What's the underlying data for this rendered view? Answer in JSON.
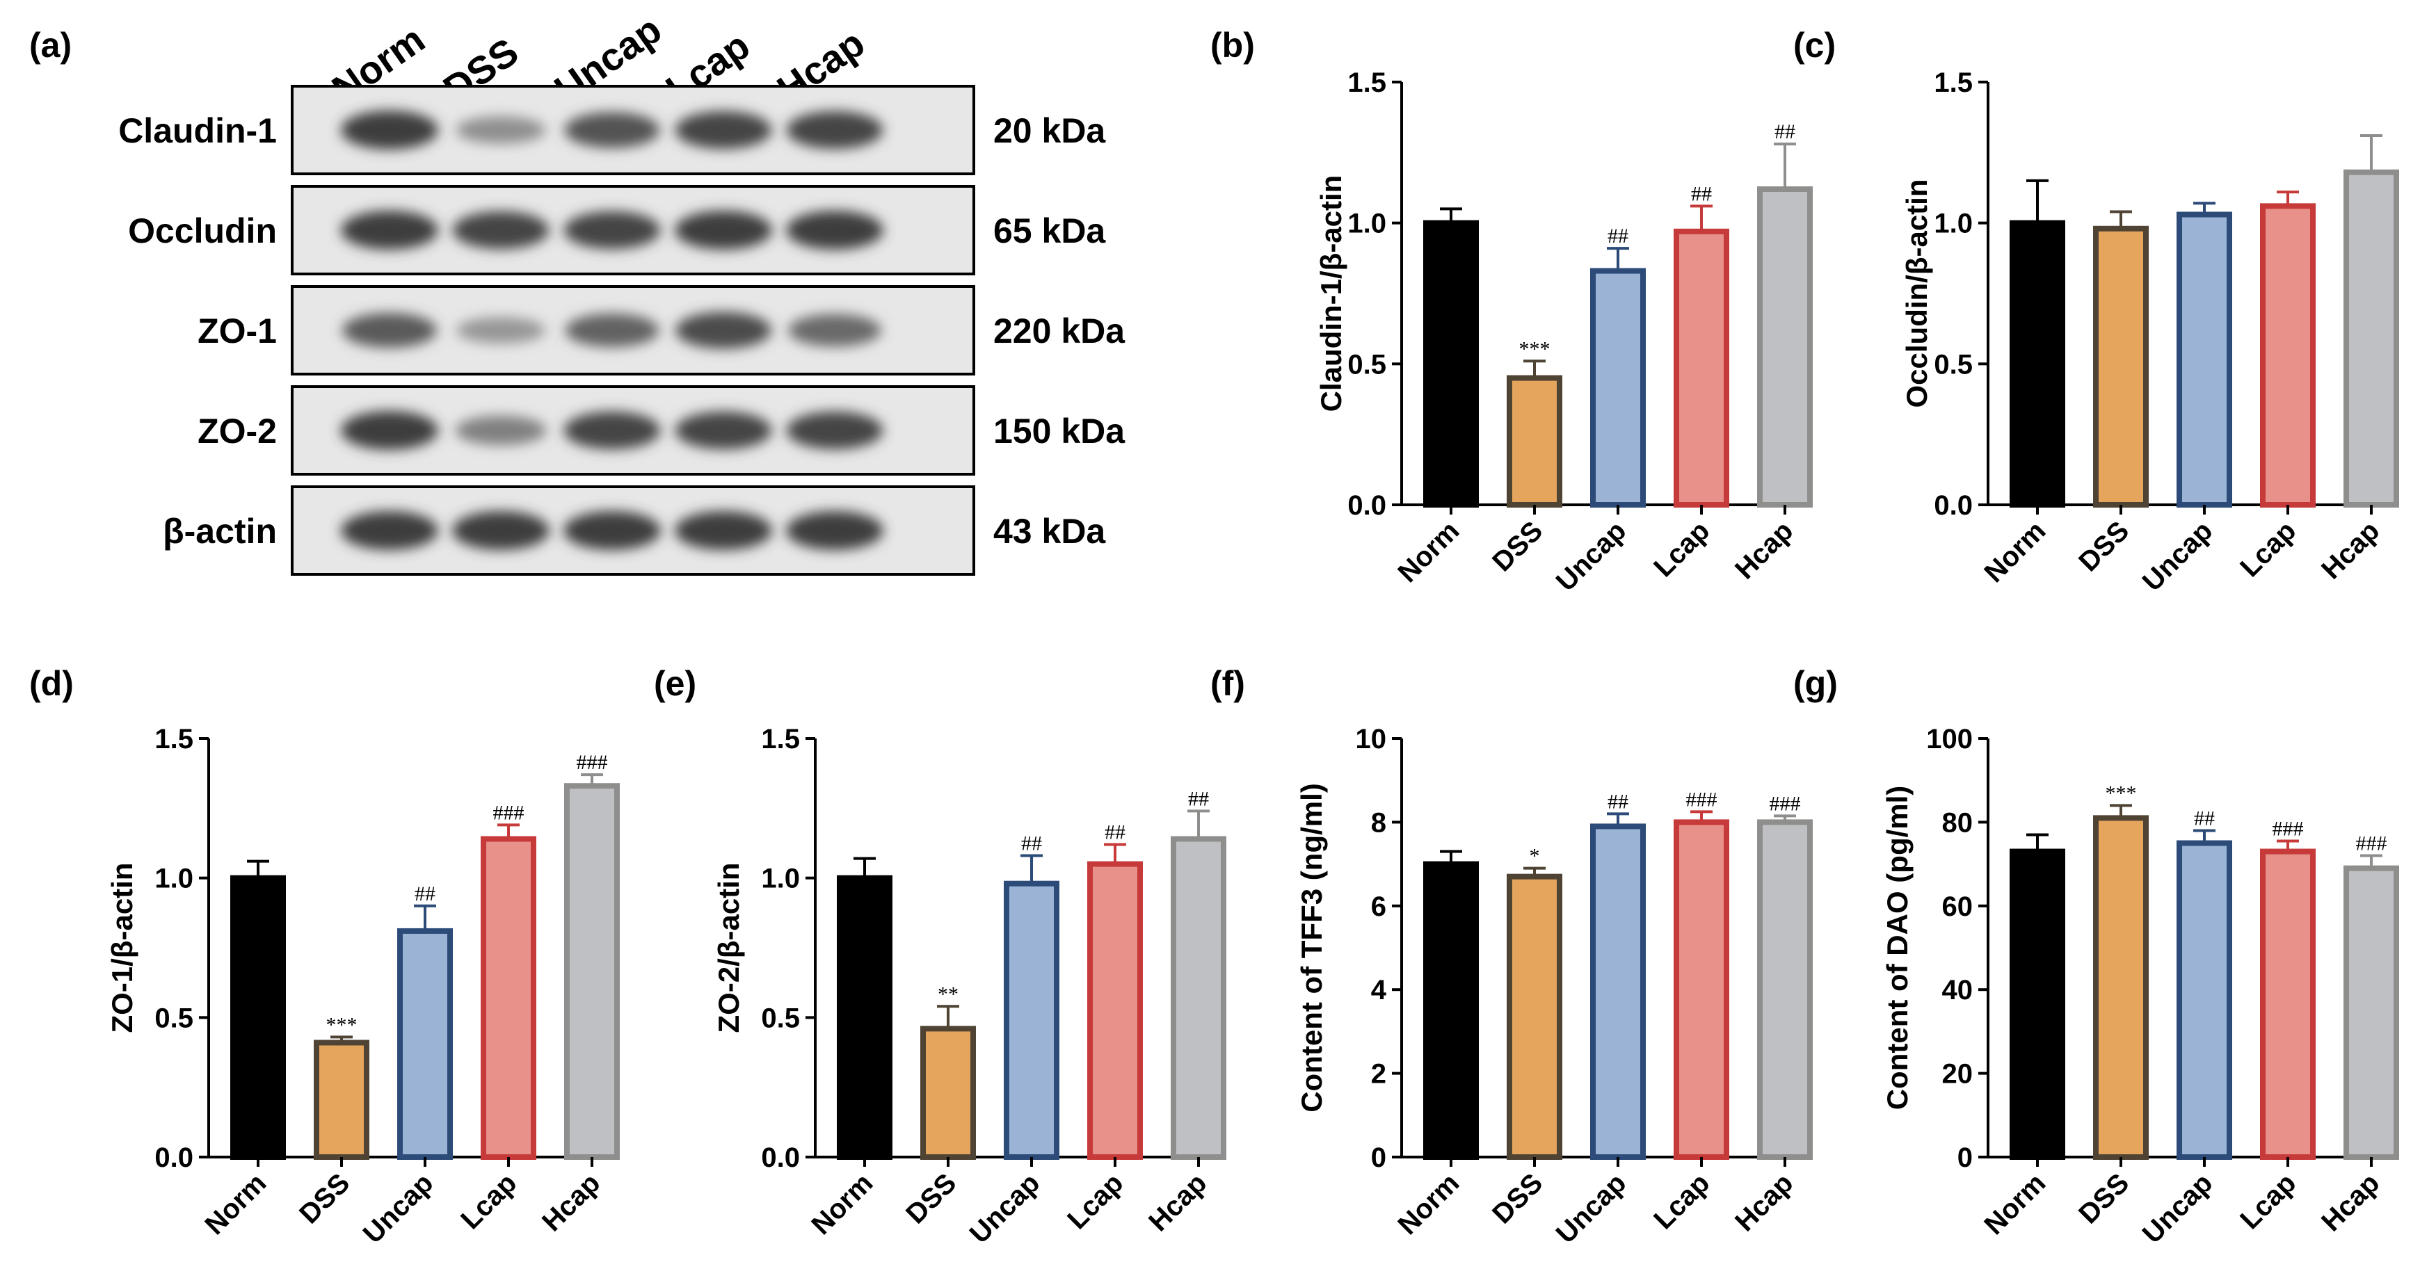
{
  "colors": {
    "Norm": {
      "fill": "#000000",
      "stroke": "#000000"
    },
    "DSS": {
      "fill": "#e6a55c",
      "stroke": "#4f4334"
    },
    "Uncap": {
      "fill": "#9bb3d4",
      "stroke": "#2c4b78"
    },
    "Lcap": {
      "fill": "#e8908a",
      "stroke": "#c73a3a"
    },
    "Hcap": {
      "fill": "#bfc0c3",
      "stroke": "#8e8f8c"
    }
  },
  "blot": {
    "letter": "(a)",
    "lanes": [
      "Norm",
      "DSS",
      "Uncap",
      "Lcap",
      "Hcap"
    ],
    "rows": [
      {
        "protein": "Claudin-1",
        "size": "20 kDa",
        "intensity": [
          1.0,
          0.45,
          0.85,
          0.95,
          0.95
        ]
      },
      {
        "protein": "Occludin",
        "size": "65 kDa",
        "intensity": [
          1.0,
          0.95,
          0.95,
          1.0,
          1.0
        ]
      },
      {
        "protein": "ZO-1",
        "size": "220 kDa",
        "intensity": [
          0.8,
          0.4,
          0.75,
          0.9,
          0.7
        ]
      },
      {
        "protein": "ZO-2",
        "size": "150 kDa",
        "intensity": [
          1.0,
          0.55,
          0.95,
          0.95,
          0.95
        ]
      },
      {
        "protein": "β-actin",
        "size": "43 kDa",
        "intensity": [
          1.0,
          1.0,
          1.0,
          1.0,
          1.0
        ]
      }
    ]
  },
  "chart_data": [
    {
      "panel": "(b)",
      "type": "bar",
      "categories": [
        "Norm",
        "DSS",
        "Uncap",
        "Lcap",
        "Hcap"
      ],
      "values": [
        1.0,
        0.45,
        0.83,
        0.97,
        1.12
      ],
      "errors": [
        0.05,
        0.06,
        0.08,
        0.09,
        0.16
      ],
      "significance": [
        "",
        "***",
        "##",
        "##",
        "##"
      ],
      "ylabel": "Claudin-1/β-actin",
      "ylim": [
        0,
        1.5
      ],
      "yticks": [
        0.0,
        0.5,
        1.0,
        1.5
      ],
      "ytick_labels": [
        "0.0",
        "0.5",
        "1.0",
        "1.5"
      ]
    },
    {
      "panel": "(c)",
      "type": "bar",
      "categories": [
        "Norm",
        "DSS",
        "Uncap",
        "Lcap",
        "Hcap"
      ],
      "values": [
        1.0,
        0.98,
        1.03,
        1.06,
        1.18
      ],
      "errors": [
        0.15,
        0.06,
        0.04,
        0.05,
        0.13
      ],
      "significance": [
        "",
        "",
        "",
        "",
        ""
      ],
      "ylabel": "Occludin/β-actin",
      "ylim": [
        0,
        1.5
      ],
      "yticks": [
        0.0,
        0.5,
        1.0,
        1.5
      ],
      "ytick_labels": [
        "0.0",
        "0.5",
        "1.0",
        "1.5"
      ]
    },
    {
      "panel": "(d)",
      "type": "bar",
      "categories": [
        "Norm",
        "DSS",
        "Uncap",
        "Lcap",
        "Hcap"
      ],
      "values": [
        1.0,
        0.41,
        0.81,
        1.14,
        1.33
      ],
      "errors": [
        0.06,
        0.02,
        0.09,
        0.05,
        0.04
      ],
      "significance": [
        "",
        "***",
        "##",
        "###",
        "###"
      ],
      "ylabel": "ZO-1/β-actin",
      "ylim": [
        0,
        1.5
      ],
      "yticks": [
        0.0,
        0.5,
        1.0,
        1.5
      ],
      "ytick_labels": [
        "0.0",
        "0.5",
        "1.0",
        "1.5"
      ]
    },
    {
      "panel": "(e)",
      "type": "bar",
      "categories": [
        "Norm",
        "DSS",
        "Uncap",
        "Lcap",
        "Hcap"
      ],
      "values": [
        1.0,
        0.46,
        0.98,
        1.05,
        1.14
      ],
      "errors": [
        0.07,
        0.08,
        0.1,
        0.07,
        0.1
      ],
      "significance": [
        "",
        "**",
        "##",
        "##",
        "##"
      ],
      "ylabel": "ZO-2/β-actin",
      "ylim": [
        0,
        1.5
      ],
      "yticks": [
        0.0,
        0.5,
        1.0,
        1.5
      ],
      "ytick_labels": [
        "0.0",
        "0.5",
        "1.0",
        "1.5"
      ]
    },
    {
      "panel": "(f)",
      "type": "bar",
      "categories": [
        "Norm",
        "DSS",
        "Uncap",
        "Lcap",
        "Hcap"
      ],
      "values": [
        7.0,
        6.7,
        7.9,
        8.0,
        8.0
      ],
      "errors": [
        0.3,
        0.2,
        0.3,
        0.25,
        0.15
      ],
      "significance": [
        "",
        "*",
        "##",
        "###",
        "###"
      ],
      "ylabel": "Content of TFF3  (ng/ml)",
      "ylim": [
        0,
        10
      ],
      "yticks": [
        0,
        2,
        4,
        6,
        8,
        10
      ],
      "ytick_labels": [
        "0",
        "2",
        "4",
        "6",
        "8",
        "10"
      ]
    },
    {
      "panel": "(g)",
      "type": "bar",
      "categories": [
        "Norm",
        "DSS",
        "Uncap",
        "Lcap",
        "Hcap"
      ],
      "values": [
        73,
        81,
        75,
        73,
        69
      ],
      "errors": [
        4,
        3,
        3,
        2.5,
        3
      ],
      "significance": [
        "",
        "***",
        "##",
        "###",
        "###"
      ],
      "ylabel": "Content of DAO  (pg/ml)",
      "ylim": [
        0,
        100
      ],
      "yticks": [
        0,
        20,
        40,
        60,
        80,
        100
      ],
      "ytick_labels": [
        "0",
        "20",
        "40",
        "60",
        "80",
        "100"
      ]
    }
  ]
}
